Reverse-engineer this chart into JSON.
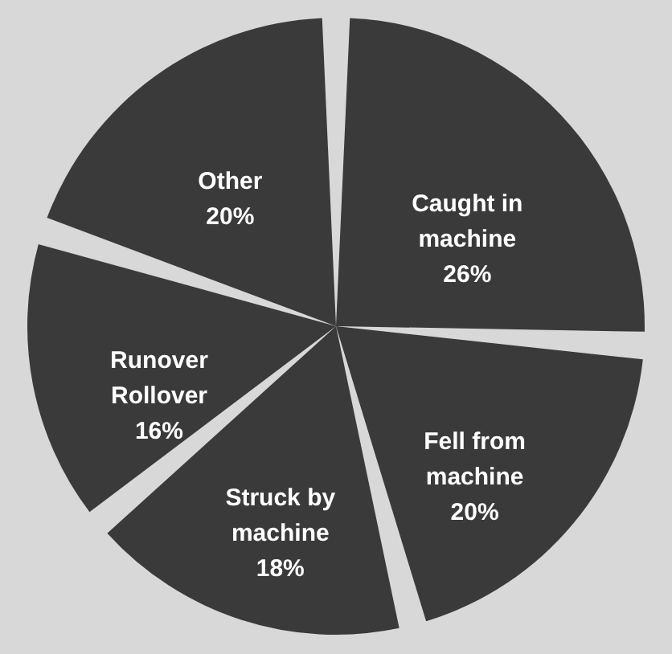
{
  "chart_data": {
    "type": "pie",
    "categories": [
      "Caught in machine",
      "Fell from machine",
      "Struck by machine",
      "Runover Rollover",
      "Other"
    ],
    "values": [
      26,
      20,
      18,
      16,
      20
    ],
    "value_labels": [
      "26%",
      "20%",
      "18%",
      "16%",
      "20%"
    ],
    "colors": [
      "#3a3a3a",
      "#3a3a3a",
      "#3a3a3a",
      "#3a3a3a",
      "#3a3a3a"
    ]
  }
}
